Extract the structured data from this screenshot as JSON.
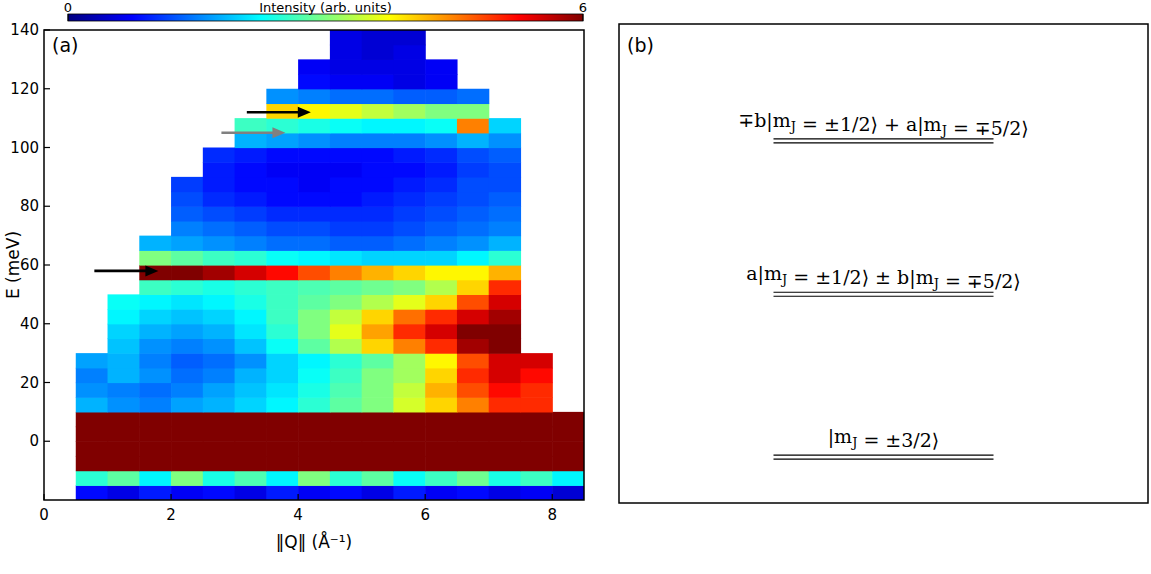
{
  "chart_data": {
    "type": "heatmap",
    "panel": "(a)",
    "x_label": "‖Q‖ (Å⁻¹)",
    "y_label": "E (meV)",
    "xlim": [
      0,
      8.5
    ],
    "xticks": [
      0,
      2,
      4,
      6,
      8
    ],
    "ylim": [
      -20,
      140
    ],
    "yticks": [
      0,
      20,
      40,
      60,
      80,
      100,
      120,
      140
    ],
    "xbins": [
      0,
      0.5,
      1,
      1.5,
      2,
      2.5,
      3,
      3.5,
      4,
      4.5,
      5,
      5.5,
      6,
      6.5,
      7,
      7.5,
      8,
      8.5
    ],
    "ybins": [
      -20,
      -15,
      -10,
      -5,
      0,
      5,
      10,
      15,
      20,
      25,
      30,
      35,
      40,
      45,
      50,
      55,
      60,
      65,
      70,
      75,
      80,
      85,
      90,
      95,
      100,
      105,
      110,
      115,
      120,
      125,
      130,
      135,
      140
    ],
    "cells": [
      [
        null,
        0.8,
        0.6,
        0.9,
        0.7,
        0.8,
        0.6,
        0.9,
        0.7,
        0.8,
        0.6,
        0.9,
        0.7,
        0.8,
        0.6,
        0.7,
        0.5
      ],
      [
        null,
        2.5,
        2.8,
        2.2,
        3.0,
        2.4,
        2.7,
        2.2,
        3.0,
        2.5,
        2.8,
        2.3,
        2.6,
        2.9,
        2.4,
        2.6,
        2.2
      ],
      [
        null,
        6,
        6,
        6,
        6,
        6,
        6,
        6,
        6,
        6,
        6,
        6,
        6,
        6,
        6,
        6,
        6
      ],
      [
        null,
        6,
        6,
        6,
        6,
        6,
        6,
        6,
        6,
        6,
        6,
        6,
        6,
        6,
        6,
        6,
        6
      ],
      [
        null,
        6,
        6,
        6,
        6,
        6,
        6,
        6,
        6,
        6,
        6,
        6,
        6,
        6,
        6,
        6,
        6
      ],
      [
        null,
        6,
        6,
        6,
        6,
        6,
        6,
        6,
        6,
        6,
        6,
        6,
        6,
        6,
        6,
        6,
        6
      ],
      [
        null,
        1.8,
        1.6,
        1.5,
        1.7,
        1.8,
        2.0,
        2.2,
        2.5,
        2.8,
        3.0,
        3.5,
        4.0,
        4.5,
        5.0,
        5.0,
        null
      ],
      [
        null,
        1.6,
        1.5,
        1.4,
        1.5,
        1.7,
        1.9,
        2.1,
        2.4,
        2.7,
        3.0,
        3.4,
        4.2,
        4.8,
        5.2,
        5.0,
        null
      ],
      [
        null,
        1.5,
        1.8,
        1.6,
        1.4,
        1.5,
        1.8,
        2.0,
        2.3,
        2.6,
        3.0,
        3.2,
        4.0,
        5.0,
        5.5,
        5.2,
        null
      ],
      [
        null,
        1.7,
        1.8,
        1.5,
        1.3,
        1.4,
        1.6,
        2.0,
        2.2,
        2.5,
        2.8,
        3.2,
        3.8,
        4.8,
        5.5,
        5.5,
        null
      ],
      [
        null,
        null,
        1.9,
        1.6,
        1.5,
        1.6,
        1.9,
        2.3,
        2.8,
        3.3,
        4.0,
        4.5,
        5.0,
        5.8,
        6.0,
        null,
        null
      ],
      [
        null,
        null,
        2.0,
        1.8,
        1.7,
        1.8,
        2.1,
        2.5,
        3.0,
        3.6,
        4.3,
        5.0,
        5.5,
        6.0,
        6.0,
        null,
        null
      ],
      [
        null,
        null,
        2.2,
        2.0,
        1.9,
        2.0,
        2.2,
        2.6,
        3.0,
        3.4,
        4.0,
        4.6,
        5.0,
        5.5,
        5.8,
        null,
        null
      ],
      [
        null,
        null,
        2.3,
        2.2,
        2.1,
        2.2,
        2.4,
        2.6,
        2.8,
        3.0,
        3.3,
        3.6,
        4.0,
        4.8,
        5.5,
        null,
        null
      ],
      [
        null,
        null,
        null,
        2.6,
        2.5,
        2.4,
        2.5,
        2.6,
        2.7,
        2.8,
        2.9,
        3.0,
        3.3,
        4.0,
        5.0,
        null,
        null
      ],
      [
        null,
        null,
        null,
        6.0,
        6.0,
        5.8,
        5.5,
        5.2,
        4.8,
        4.5,
        4.2,
        4.0,
        3.8,
        3.8,
        4.2,
        null,
        null
      ],
      [
        null,
        null,
        null,
        3.0,
        2.8,
        2.6,
        2.5,
        2.3,
        2.2,
        2.1,
        2.0,
        2.0,
        2.0,
        2.2,
        2.5,
        null,
        null
      ],
      [
        null,
        null,
        null,
        1.8,
        1.7,
        1.6,
        1.5,
        1.4,
        1.4,
        1.3,
        1.3,
        1.4,
        1.5,
        1.6,
        1.8,
        null,
        null
      ],
      [
        null,
        null,
        null,
        null,
        1.5,
        1.4,
        1.3,
        1.2,
        1.2,
        1.1,
        1.1,
        1.2,
        1.3,
        1.4,
        1.5,
        null,
        null
      ],
      [
        null,
        null,
        null,
        null,
        1.3,
        1.2,
        1.1,
        1.0,
        1.0,
        1.0,
        1.0,
        1.1,
        1.2,
        1.3,
        1.4,
        null,
        null
      ],
      [
        null,
        null,
        null,
        null,
        1.2,
        1.0,
        0.9,
        0.8,
        0.8,
        0.8,
        0.9,
        1.0,
        1.1,
        1.2,
        1.3,
        null,
        null
      ],
      [
        null,
        null,
        null,
        null,
        1.1,
        0.9,
        0.8,
        0.8,
        0.7,
        0.8,
        0.8,
        0.9,
        1.0,
        1.2,
        1.2,
        null,
        null
      ],
      [
        null,
        null,
        null,
        null,
        null,
        0.9,
        0.8,
        0.7,
        0.7,
        0.7,
        0.8,
        0.8,
        0.9,
        1.1,
        1.2,
        null,
        null
      ],
      [
        null,
        null,
        null,
        null,
        null,
        1.0,
        0.9,
        0.8,
        0.8,
        0.8,
        0.8,
        0.9,
        1.0,
        1.2,
        1.3,
        null,
        null
      ],
      [
        null,
        null,
        null,
        null,
        null,
        null,
        1.8,
        1.7,
        1.6,
        1.5,
        1.5,
        1.5,
        1.6,
        1.8,
        1.6,
        null,
        null
      ],
      [
        null,
        null,
        null,
        null,
        null,
        null,
        2.6,
        2.5,
        2.4,
        2.3,
        2.2,
        2.2,
        2.3,
        4.5,
        2.0,
        null,
        null
      ],
      [
        null,
        null,
        null,
        null,
        null,
        null,
        null,
        4.0,
        3.8,
        3.6,
        3.4,
        3.2,
        3.0,
        3.0,
        null,
        null,
        null
      ],
      [
        null,
        null,
        null,
        null,
        null,
        null,
        null,
        1.6,
        1.5,
        1.4,
        1.4,
        1.3,
        1.3,
        1.4,
        null,
        null,
        null
      ],
      [
        null,
        null,
        null,
        null,
        null,
        null,
        null,
        null,
        0.8,
        0.7,
        0.7,
        0.6,
        0.7,
        null,
        null,
        null,
        null
      ],
      [
        null,
        null,
        null,
        null,
        null,
        null,
        null,
        null,
        0.7,
        0.6,
        0.6,
        0.6,
        0.7,
        null,
        null,
        null,
        null
      ],
      [
        null,
        null,
        null,
        null,
        null,
        null,
        null,
        null,
        null,
        0.6,
        0.5,
        0.6,
        null,
        null,
        null,
        null,
        null
      ],
      [
        null,
        null,
        null,
        null,
        null,
        null,
        null,
        null,
        null,
        0.6,
        0.5,
        0.5,
        null,
        null,
        null,
        null,
        null
      ]
    ],
    "colorbar": {
      "label": "Intensity (arb. units)",
      "range": [
        0,
        6
      ],
      "ticks": [
        0,
        6
      ]
    },
    "arrows": [
      {
        "x": 4.2,
        "y": 112,
        "color": "#000000"
      },
      {
        "x": 3.8,
        "y": 105,
        "color": "#808080"
      },
      {
        "x": 1.8,
        "y": 58,
        "color": "#000000"
      }
    ]
  },
  "diagram": {
    "panel": "(b)",
    "levels": [
      {
        "label": "∓b|mJ = ±1/2⟩ + a|mJ = ∓5/2⟩"
      },
      {
        "label": "a|mJ = ±1/2⟩ ± b|mJ = ∓5/2⟩"
      },
      {
        "label": "|mJ = ±3/2⟩"
      }
    ]
  }
}
